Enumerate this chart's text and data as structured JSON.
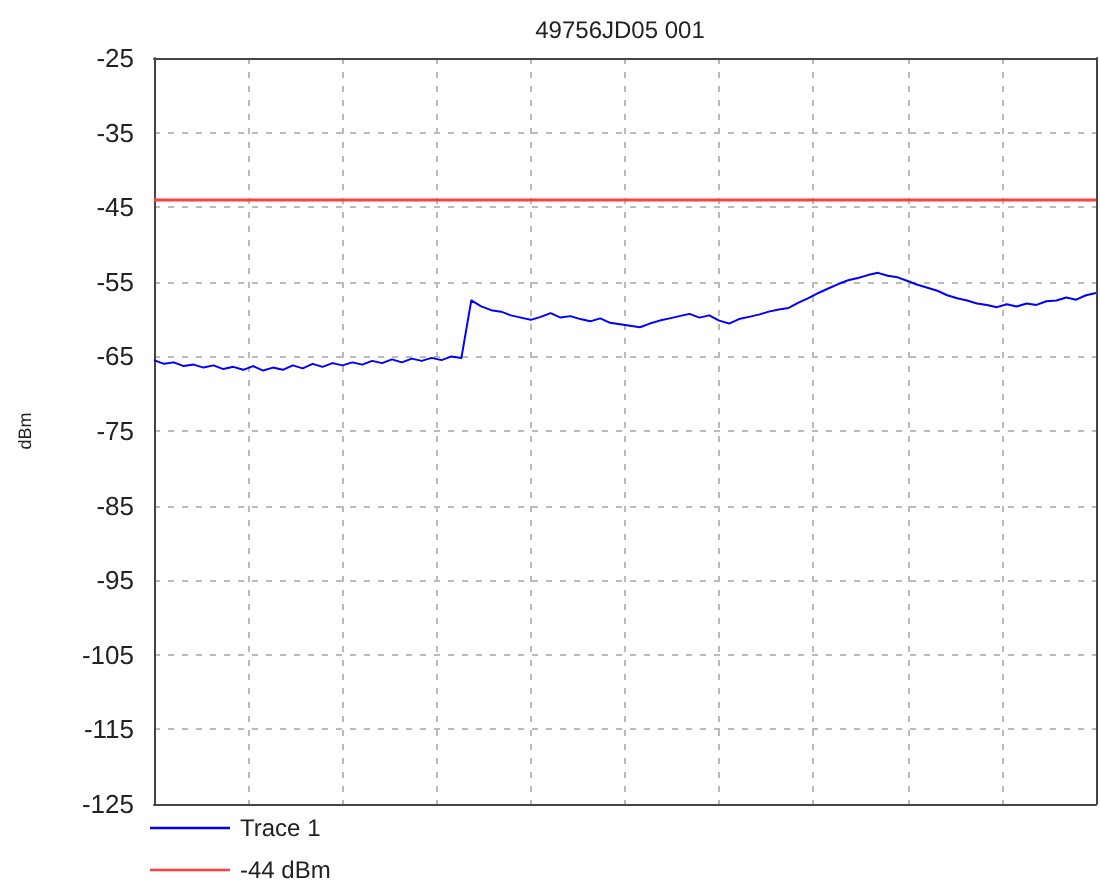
{
  "chart_data": {
    "type": "line",
    "title": "49756JD05 001",
    "ylabel": "dBm",
    "categories": [
      null,
      null,
      null,
      null,
      null,
      null,
      null,
      null,
      null,
      null,
      null,
      null,
      null,
      null,
      null,
      null,
      null,
      null,
      null,
      null,
      null,
      null,
      null,
      null,
      null,
      null,
      null,
      null,
      null,
      null,
      null,
      null,
      null,
      null,
      null,
      null,
      null,
      null,
      null,
      null,
      null,
      null,
      null,
      null,
      null,
      null,
      null,
      null,
      null,
      null,
      null,
      null,
      null,
      null,
      null,
      null,
      null,
      null,
      null,
      null,
      null,
      null,
      null,
      null,
      null,
      null,
      null,
      null,
      null,
      null,
      null,
      null,
      null,
      null,
      null,
      null,
      null,
      null,
      null,
      null,
      null,
      null,
      null,
      null,
      null,
      null,
      null,
      null,
      null,
      null,
      null,
      null,
      null,
      null,
      null,
      null
    ],
    "series": [
      {
        "name": "Trace 1",
        "color": "#0000ff",
        "values": [
          -65.5,
          -66.0,
          -65.8,
          -66.3,
          -66.1,
          -66.5,
          -66.2,
          -66.7,
          -66.4,
          -66.8,
          -66.3,
          -66.9,
          -66.5,
          -66.8,
          -66.2,
          -66.6,
          -66.0,
          -66.4,
          -65.9,
          -66.2,
          -65.8,
          -66.1,
          -65.6,
          -65.9,
          -65.4,
          -65.8,
          -65.3,
          -65.6,
          -65.2,
          -65.5,
          -65.0,
          -65.2,
          -57.5,
          -58.3,
          -58.8,
          -59.0,
          -59.5,
          -59.8,
          -60.1,
          -59.7,
          -59.2,
          -59.8,
          -59.6,
          -60.0,
          -60.3,
          -59.9,
          -60.5,
          -60.7,
          -60.9,
          -61.1,
          -60.6,
          -60.2,
          -59.9,
          -59.6,
          -59.3,
          -59.8,
          -59.5,
          -60.2,
          -60.6,
          -60.0,
          -59.7,
          -59.4,
          -59.0,
          -58.7,
          -58.5,
          -57.8,
          -57.2,
          -56.5,
          -55.9,
          -55.3,
          -54.8,
          -54.5,
          -54.1,
          -53.8,
          -54.2,
          -54.4,
          -54.9,
          -55.4,
          -55.8,
          -56.2,
          -56.8,
          -57.2,
          -57.5,
          -57.9,
          -58.1,
          -58.4,
          -58.0,
          -58.3,
          -57.9,
          -58.1,
          -57.6,
          -57.5,
          -57.1,
          -57.4,
          -56.8,
          -56.5
        ]
      }
    ],
    "ref_lines": [
      {
        "axis": "y",
        "value": -44,
        "label": "-44 dBm",
        "color": "#ff4040"
      }
    ],
    "ylim": [
      -125,
      -25
    ],
    "yticks": [
      -125,
      -115,
      -105,
      -95,
      -85,
      -75,
      -65,
      -55,
      -45,
      -35,
      -25
    ],
    "grid": true,
    "legend": "bottom left",
    "line_style": "solid",
    "tick_labels": "y"
  }
}
